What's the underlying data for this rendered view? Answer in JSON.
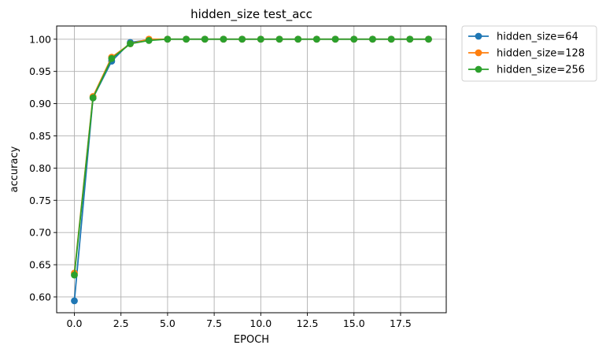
{
  "chart_data": {
    "type": "line",
    "title": "hidden_size test_acc",
    "xlabel": "EPOCH",
    "ylabel": "accuracy",
    "xlim": [
      -0.95,
      19.95
    ],
    "ylim": [
      0.5755,
      1.0205
    ],
    "grid": true,
    "legend_placement": "outside-top-right",
    "x_ticks": [
      0,
      2.5,
      5,
      7.5,
      10,
      12.5,
      15,
      17.5
    ],
    "x_tick_labels": [
      "0.0",
      "2.5",
      "5.0",
      "7.5",
      "10.0",
      "12.5",
      "15.0",
      "17.5"
    ],
    "y_ticks": [
      0.6,
      0.65,
      0.7,
      0.75,
      0.8,
      0.85,
      0.9,
      0.95,
      1.0
    ],
    "y_tick_labels": [
      "0.60",
      "0.65",
      "0.70",
      "0.75",
      "0.80",
      "0.85",
      "0.90",
      "0.95",
      "1.00"
    ],
    "x": [
      0,
      1,
      2,
      3,
      4,
      5,
      6,
      7,
      8,
      9,
      10,
      11,
      12,
      13,
      14,
      15,
      16,
      17,
      18,
      19
    ],
    "series": [
      {
        "name": "hidden_size=64",
        "color": "#1f77b4",
        "values": [
          0.594,
          0.909,
          0.966,
          0.995,
          0.999,
          1.0,
          1.0,
          1.0,
          1.0,
          1.0,
          1.0,
          1.0,
          1.0,
          1.0,
          1.0,
          1.0,
          1.0,
          1.0,
          1.0,
          1.0
        ]
      },
      {
        "name": "hidden_size=128",
        "color": "#ff7f0e",
        "values": [
          0.637,
          0.911,
          0.972,
          0.993,
          1.0,
          1.0,
          1.0,
          1.0,
          1.0,
          1.0,
          1.0,
          1.0,
          1.0,
          1.0,
          1.0,
          1.0,
          1.0,
          1.0,
          1.0,
          1.0
        ]
      },
      {
        "name": "hidden_size=256",
        "color": "#2ca02c",
        "values": [
          0.634,
          0.909,
          0.97,
          0.993,
          0.998,
          1.0,
          1.0,
          1.0,
          1.0,
          1.0,
          1.0,
          1.0,
          1.0,
          1.0,
          1.0,
          1.0,
          1.0,
          1.0,
          1.0,
          1.0
        ]
      }
    ]
  }
}
